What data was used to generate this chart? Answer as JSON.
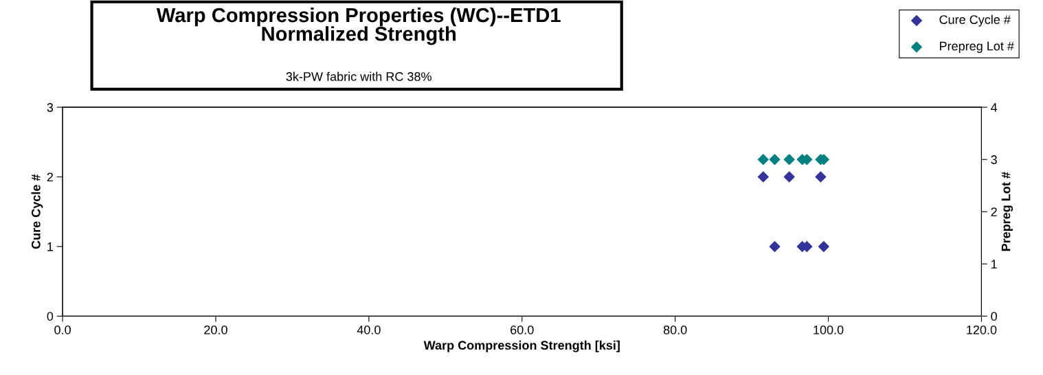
{
  "chart_data": {
    "type": "scatter",
    "title": "Warp Compression Properties (WC)--ETD1\nNormalized Strength",
    "subtitle": "3k-PW fabric with RC 38%",
    "xlabel": "Warp Compression Strength [ksi]",
    "ylabel": "Cure Cycle #",
    "y2label": "Prepreg Lot #",
    "series": [
      {
        "name": "Cure Cycle #",
        "color": "#333399",
        "x": [
          91.5,
          94.9,
          99.0,
          93.0,
          96.6,
          97.2,
          99.4
        ],
        "values": [
          2,
          2,
          2,
          1,
          1,
          1,
          1
        ]
      },
      {
        "name": "Prepreg Lot #",
        "color": "#008080",
        "axis": "y2",
        "x": [
          91.5,
          93.0,
          94.9,
          96.6,
          97.2,
          99.0,
          99.4
        ],
        "values": [
          3,
          3,
          3,
          3,
          3,
          3,
          3
        ]
      }
    ],
    "xlim": [
      0,
      120
    ],
    "xticks": [
      {
        "value": 0,
        "label": "0.0"
      },
      {
        "value": 20,
        "label": "20.0"
      },
      {
        "value": 40,
        "label": "40.0"
      },
      {
        "value": 60,
        "label": "60.0"
      },
      {
        "value": 80,
        "label": "80.0"
      },
      {
        "value": 100,
        "label": "100.0"
      },
      {
        "value": 120,
        "label": "120.0"
      }
    ],
    "ylim": [
      0,
      3
    ],
    "yticks": [
      0,
      1,
      2,
      3
    ],
    "y2lim": [
      0,
      4
    ],
    "y2ticks": [
      0,
      1,
      2,
      3,
      4
    ],
    "marker": "diamond",
    "grid": false,
    "legend": "top right"
  }
}
